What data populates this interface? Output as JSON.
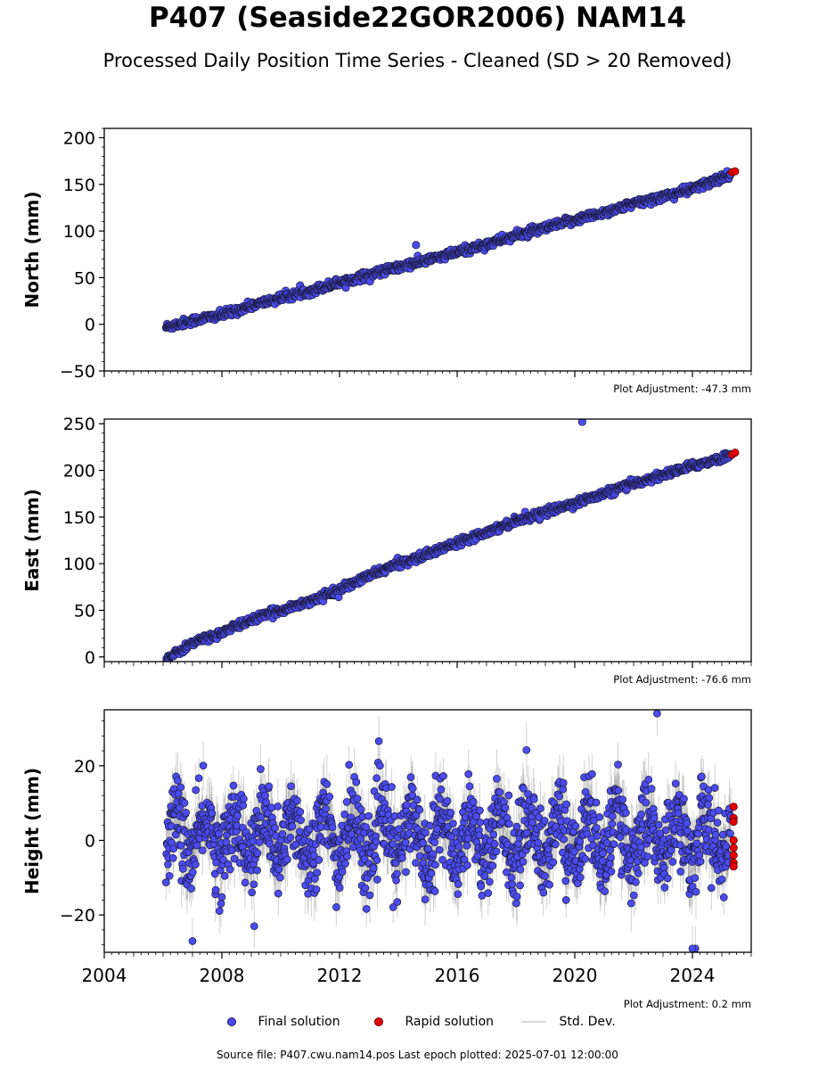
{
  "title": "P407 (Seaside22GOR2006) NAM14",
  "subtitle": "Processed Daily Position Time Series - Cleaned (SD > 20 Removed)",
  "footer": "Source file: P407.cwu.nam14.pos  Last epoch plotted: 2025-07-01 12:00:00",
  "legend": {
    "final": "Final solution",
    "rapid": "Rapid solution",
    "std": "Std. Dev."
  },
  "colors": {
    "final": "#4b4bf0",
    "rapid": "#e60000",
    "std": "#9a9a9a"
  },
  "chart_data": [
    {
      "type": "scatter",
      "ylabel": "North (mm)",
      "xlim": [
        2004,
        2026
      ],
      "ylim": [
        -50,
        210
      ],
      "yticks": [
        -50,
        0,
        50,
        100,
        150,
        200
      ],
      "ytick_labels": [
        "−50",
        "0",
        "50",
        "100",
        "150",
        "200"
      ],
      "adjustment": "Plot Adjustment: -47.3 mm",
      "series": [
        {
          "name": "Final solution",
          "x": [
            2006.1,
            2007.0,
            2008.0,
            2009.0,
            2010.0,
            2011.0,
            2012.0,
            2013.0,
            2014.0,
            2015.0,
            2016.0,
            2017.0,
            2018.0,
            2019.0,
            2020.0,
            2021.0,
            2022.0,
            2023.0,
            2024.0,
            2025.0,
            2025.3
          ],
          "y": [
            -3,
            4,
            10,
            20,
            28,
            36,
            45,
            53,
            61,
            69,
            77,
            86,
            95,
            103,
            112,
            120,
            129,
            137,
            145,
            157,
            162
          ],
          "noise": 2.2
        },
        {
          "name": "Rapid solution",
          "x": [
            2025.35,
            2025.45
          ],
          "y": [
            163,
            164
          ]
        }
      ],
      "outliers": [
        [
          2014.6,
          85
        ]
      ]
    },
    {
      "type": "scatter",
      "ylabel": "East (mm)",
      "xlim": [
        2004,
        2026
      ],
      "ylim": [
        -5,
        255
      ],
      "yticks": [
        0,
        50,
        100,
        150,
        200,
        250
      ],
      "ytick_labels": [
        "0",
        "50",
        "100",
        "150",
        "200",
        "250"
      ],
      "adjustment": "Plot Adjustment: -76.6 mm",
      "series": [
        {
          "name": "Final solution",
          "x": [
            2006.1,
            2007.0,
            2008.0,
            2009.0,
            2010.0,
            2011.0,
            2012.0,
            2013.0,
            2014.0,
            2015.0,
            2016.0,
            2017.0,
            2018.0,
            2019.0,
            2020.0,
            2021.0,
            2022.0,
            2023.0,
            2024.0,
            2025.0,
            2025.3
          ],
          "y": [
            -3,
            15,
            26,
            40,
            50,
            60,
            72,
            87,
            100,
            110,
            123,
            134,
            146,
            155,
            165,
            175,
            186,
            195,
            205,
            213,
            217
          ],
          "noise": 2.0
        },
        {
          "name": "Rapid solution",
          "x": [
            2025.35,
            2025.45
          ],
          "y": [
            217,
            219
          ]
        }
      ],
      "outliers": [
        [
          2020.25,
          252
        ]
      ]
    },
    {
      "type": "scatter",
      "ylabel": "Height (mm)",
      "xlim": [
        2004,
        2026
      ],
      "ylim": [
        -30,
        35
      ],
      "yticks": [
        -20,
        0,
        20
      ],
      "ytick_labels": [
        "−20",
        "0",
        "20"
      ],
      "xticks": [
        2004,
        2008,
        2012,
        2016,
        2020,
        2024
      ],
      "xtick_labels": [
        "2004",
        "2008",
        "2012",
        "2016",
        "2020",
        "2024"
      ],
      "adjustment": "Plot Adjustment: 0.2 mm",
      "series": [
        {
          "name": "Final solution",
          "x_range": [
            2006.1,
            2025.3
          ],
          "seasonal_amplitude": 6,
          "noise": 5.5,
          "y_mean": 1
        },
        {
          "name": "Rapid solution",
          "x": [
            2025.4,
            2025.4,
            2025.4,
            2025.4,
            2025.4,
            2025.4,
            2025.4,
            2025.4
          ],
          "y": [
            9,
            6,
            5,
            0,
            -2,
            -4,
            -6,
            -7
          ]
        }
      ],
      "outliers": [
        [
          2022.8,
          34
        ],
        [
          2024.1,
          -29
        ],
        [
          2024.0,
          -29
        ],
        [
          2009.1,
          -23
        ],
        [
          2007.0,
          -27
        ]
      ]
    }
  ]
}
